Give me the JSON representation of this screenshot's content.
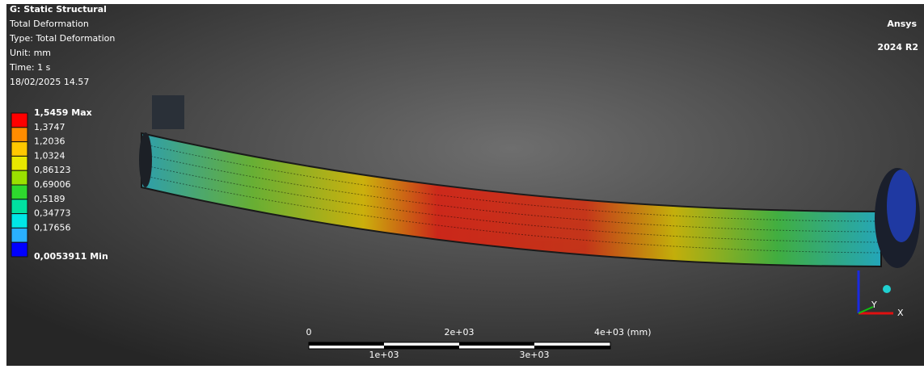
{
  "header": {
    "title": "G: Static Structural",
    "lines": [
      "Total Deformation",
      "Type: Total Deformation",
      "Unit: mm",
      "Time: 1 s",
      "18/02/2025 14.57"
    ]
  },
  "legend": {
    "labels": [
      "1,5459 Max",
      "1,3747",
      "1,2036",
      "1,0324",
      "0,86123",
      "0,69006",
      "0,5189",
      "0,34773",
      "0,17656",
      "0,0053911 Min"
    ],
    "colors": [
      "#ff0000",
      "#ff8c00",
      "#ffc800",
      "#e8e800",
      "#9be000",
      "#2ed92e",
      "#00e0a0",
      "#00e6e6",
      "#2ab0ff",
      "#0000ff"
    ]
  },
  "logo": {
    "brand": "Ansys",
    "version": "2024 R2"
  },
  "scale_bar": {
    "top_labels": [
      "0",
      "2e+03",
      "4e+03 (mm)"
    ],
    "bottom_labels": [
      "1e+03",
      "3e+03"
    ]
  },
  "triad": {
    "x": "X",
    "y": "Y"
  }
}
